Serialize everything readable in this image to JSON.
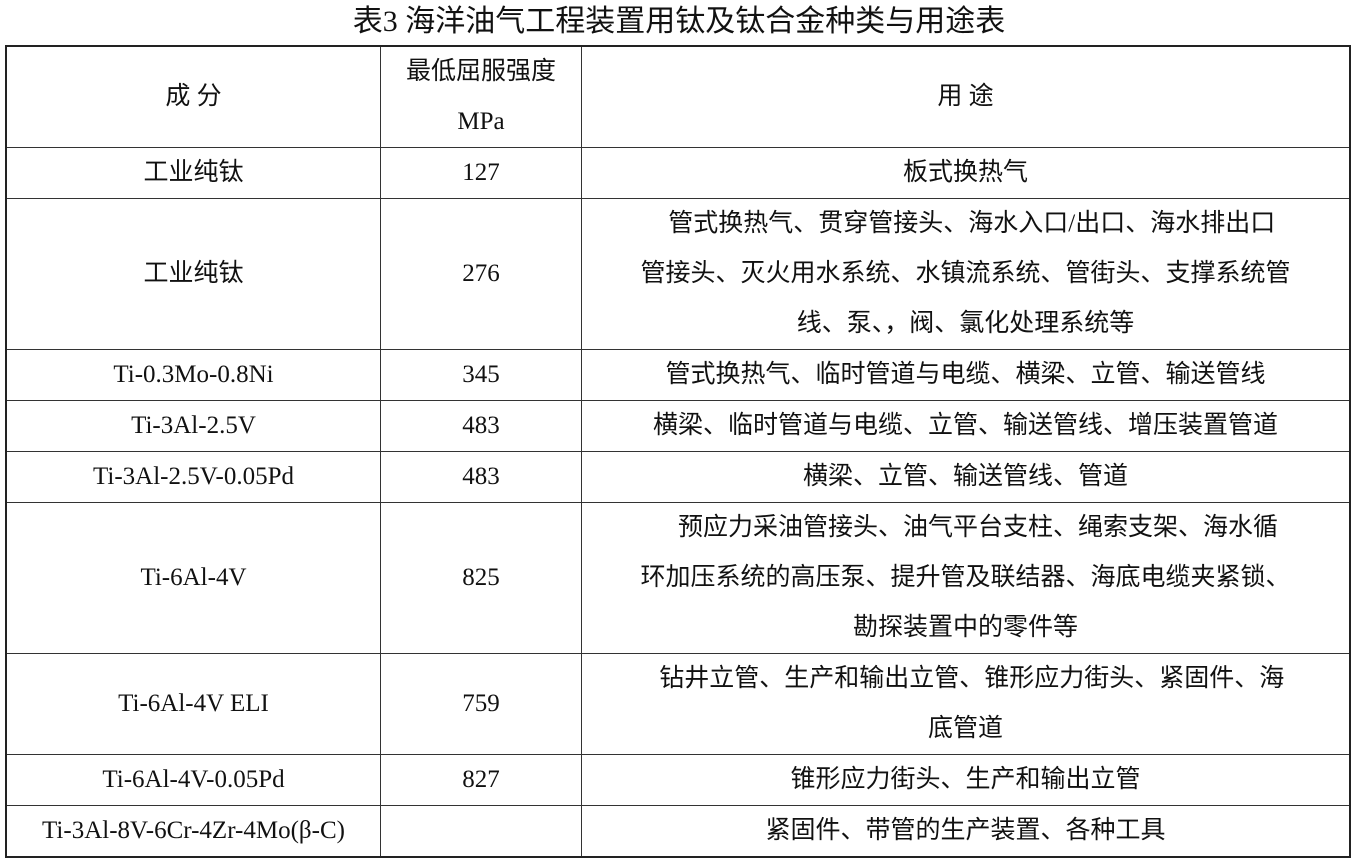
{
  "title": "表3  海洋油气工程装置用钛及钛合金种类与用途表",
  "header": {
    "composition": "成    分",
    "strength_line1": "最低屈服强度",
    "strength_line2": "MPa",
    "usage": "用      途"
  },
  "rows": [
    {
      "composition": "工业纯钛",
      "strength": "127",
      "usage": [
        "板式换热气"
      ]
    },
    {
      "composition": "工业纯钛",
      "strength": "276",
      "usage": [
        "  管式换热气、贯穿管接头、海水入口/出口、海水排出口",
        "管接头、灭火用水系统、水镇流系统、管街头、支撑系统管",
        "线、泵、，阀、氯化处理系统等"
      ]
    },
    {
      "composition": "Ti-0.3Mo-0.8Ni",
      "strength": "345",
      "usage": [
        "管式换热气、临时管道与电缆、横梁、立管、输送管线"
      ]
    },
    {
      "composition": "Ti-3Al-2.5V",
      "strength": "483",
      "usage": [
        "横梁、临时管道与电缆、立管、输送管线、增压装置管道"
      ]
    },
    {
      "composition": "Ti-3Al-2.5V-0.05Pd",
      "strength": "483",
      "usage": [
        "横梁、立管、输送管线、管道"
      ]
    },
    {
      "composition": "Ti-6Al-4V",
      "strength": "825",
      "usage": [
        "    预应力采油管接头、油气平台支柱、绳索支架、海水循",
        "环加压系统的高压泵、提升管及联结器、海底电缆夹紧锁、",
        "勘探装置中的零件等"
      ]
    },
    {
      "composition": "Ti-6Al-4V ELI",
      "strength": "759",
      "usage": [
        "  钻井立管、生产和输出立管、锥形应力街头、紧固件、海",
        "底管道"
      ]
    },
    {
      "composition": "Ti-6Al-4V-0.05Pd",
      "strength": "827",
      "usage": [
        "锥形应力街头、生产和输出立管"
      ]
    },
    {
      "composition": "Ti-3Al-8V-6Cr-4Zr-4Mo(β-C)",
      "strength": "",
      "usage": [
        "紧固件、带管的生产装置、各种工具"
      ]
    }
  ]
}
